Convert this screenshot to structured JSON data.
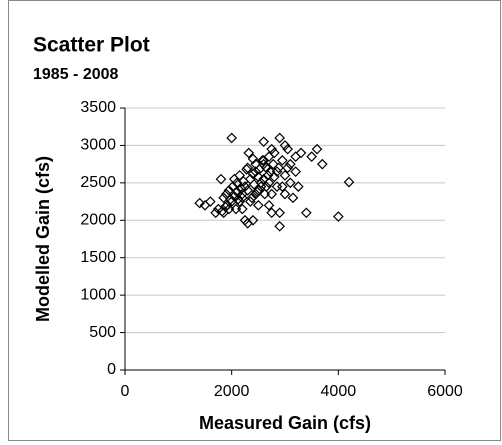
{
  "chart_data": {
    "type": "scatter",
    "title": "Scatter Plot",
    "subtitle": "1985 - 2008",
    "x_label": "Measured Gain (cfs)",
    "y_label": "Modelled Gain (cfs)",
    "x": [
      1400,
      1500,
      1600,
      1700,
      1750,
      1800,
      1820,
      1850,
      1880,
      1900,
      1920,
      1950,
      1980,
      2000,
      2000,
      2020,
      2050,
      2080,
      2100,
      2100,
      2120,
      2150,
      2180,
      2200,
      2200,
      2220,
      2250,
      2280,
      2300,
      2300,
      2320,
      2350,
      2380,
      2400,
      2400,
      2420,
      2450,
      2480,
      2500,
      2500,
      2520,
      2550,
      2580,
      2600,
      2600,
      2620,
      2650,
      2680,
      2700,
      2700,
      2720,
      2750,
      2780,
      2800,
      2800,
      2850,
      2880,
      2900,
      2900,
      2950,
      3000,
      3000,
      3050,
      3100,
      3150,
      3200,
      3200,
      3300,
      3400,
      3500,
      3600,
      3700,
      4000,
      4200,
      2250,
      2600,
      2900,
      3000,
      2300,
      2400,
      1850,
      2200,
      2500,
      2700,
      2750,
      2950,
      3100,
      3250,
      2150,
      2450,
      2650,
      2850,
      1950,
      2350,
      2550,
      2050,
      2750,
      3050,
      2600,
      2450
    ],
    "y": [
      2230,
      2200,
      2250,
      2100,
      2150,
      2550,
      2120,
      2300,
      2180,
      2350,
      2200,
      2400,
      2280,
      3100,
      2250,
      2450,
      2320,
      2150,
      2500,
      2380,
      2280,
      2600,
      2420,
      2350,
      2150,
      2520,
      2450,
      2680,
      1960,
      2400,
      2900,
      2550,
      2300,
      2000,
      2620,
      2480,
      2750,
      2380,
      2580,
      2200,
      2680,
      2450,
      2800,
      3050,
      2550,
      2350,
      2700,
      2600,
      2850,
      2500,
      2650,
      2100,
      2750,
      2580,
      2900,
      2450,
      2700,
      3100,
      1920,
      2800,
      2600,
      2350,
      2950,
      2500,
      2300,
      2850,
      2650,
      2900,
      2100,
      2850,
      2950,
      2750,
      2050,
      2510,
      2000,
      2750,
      2100,
      3000,
      2700,
      2820,
      2100,
      2300,
      2400,
      2200,
      2950,
      2450,
      2750,
      2450,
      2250,
      2350,
      2450,
      2650,
      2150,
      2250,
      2500,
      2550,
      2350,
      2700,
      2800,
      2650
    ],
    "marker": "diamond",
    "color": "#000000",
    "xlim": [
      0,
      6000
    ],
    "xticks": [
      0,
      2000,
      4000,
      6000
    ],
    "ylim": [
      0,
      3500
    ],
    "yticks": [
      0,
      500,
      1000,
      1500,
      2000,
      2500,
      3000,
      3500
    ],
    "grid": true
  }
}
